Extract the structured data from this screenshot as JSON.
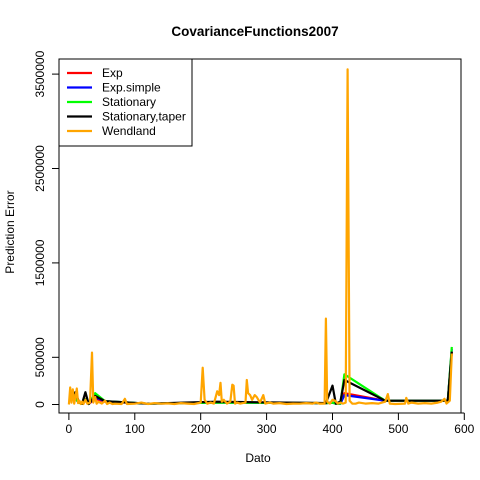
{
  "chart_data": {
    "type": "line",
    "title": "CovarianceFunctions2007",
    "xlabel": "Dato",
    "ylabel": "Prediction Error",
    "xlim": [
      -15,
      595
    ],
    "ylim": [
      -90000,
      3660000
    ],
    "x_ticks": [
      0,
      100,
      200,
      300,
      400,
      500,
      600
    ],
    "y_ticks": [
      0,
      500000,
      1500000,
      2500000,
      3500000
    ],
    "y_tick_labels": [
      "0",
      "500000",
      "1500000",
      "2500000",
      "3500000"
    ],
    "grid": false,
    "legend_position": "top-left",
    "series": [
      {
        "name": "Exp",
        "color": "#ff0000",
        "points": [
          [
            5,
            150000
          ],
          [
            10,
            60000
          ],
          [
            15,
            20000
          ],
          [
            20,
            8000
          ],
          [
            25,
            60000
          ],
          [
            30,
            5000
          ],
          [
            40,
            60000
          ],
          [
            55,
            30000
          ],
          [
            120,
            8000
          ],
          [
            175,
            15000
          ],
          [
            225,
            20000
          ],
          [
            390,
            15000
          ],
          [
            400,
            20000
          ],
          [
            405,
            8000
          ],
          [
            412,
            10000
          ],
          [
            418,
            120000
          ],
          [
            480,
            40000
          ],
          [
            575,
            40000
          ],
          [
            581,
            560000
          ]
        ]
      },
      {
        "name": "Exp.simple",
        "color": "#0000ff",
        "points": [
          [
            5,
            120000
          ],
          [
            10,
            60000
          ],
          [
            15,
            20000
          ],
          [
            20,
            8000
          ],
          [
            25,
            55000
          ],
          [
            30,
            5000
          ],
          [
            40,
            75000
          ],
          [
            55,
            35000
          ],
          [
            120,
            8000
          ],
          [
            175,
            15000
          ],
          [
            225,
            20000
          ],
          [
            390,
            15000
          ],
          [
            400,
            20000
          ],
          [
            405,
            8000
          ],
          [
            412,
            10000
          ],
          [
            418,
            100000
          ],
          [
            480,
            40000
          ],
          [
            575,
            40000
          ],
          [
            581,
            590000
          ]
        ]
      },
      {
        "name": "Stationary",
        "color": "#00ff00",
        "points": [
          [
            5,
            130000
          ],
          [
            10,
            60000
          ],
          [
            15,
            20000
          ],
          [
            20,
            8000
          ],
          [
            25,
            55000
          ],
          [
            30,
            5000
          ],
          [
            40,
            120000
          ],
          [
            55,
            35000
          ],
          [
            120,
            8000
          ],
          [
            175,
            15000
          ],
          [
            225,
            20000
          ],
          [
            390,
            15000
          ],
          [
            400,
            20000
          ],
          [
            405,
            8000
          ],
          [
            412,
            10000
          ],
          [
            418,
            320000
          ],
          [
            480,
            40000
          ],
          [
            575,
            40000
          ],
          [
            581,
            610000
          ]
        ]
      },
      {
        "name": "Stationary,taper",
        "color": "#000000",
        "points": [
          [
            5,
            110000
          ],
          [
            10,
            130000
          ],
          [
            15,
            30000
          ],
          [
            20,
            8000
          ],
          [
            25,
            130000
          ],
          [
            30,
            5000
          ],
          [
            40,
            90000
          ],
          [
            55,
            35000
          ],
          [
            120,
            8000
          ],
          [
            175,
            20000
          ],
          [
            225,
            30000
          ],
          [
            390,
            15000
          ],
          [
            400,
            200000
          ],
          [
            405,
            10000
          ],
          [
            412,
            30000
          ],
          [
            418,
            260000
          ],
          [
            480,
            40000
          ],
          [
            575,
            40000
          ],
          [
            581,
            560000
          ]
        ]
      },
      {
        "name": "Wendland",
        "color": "#ffa500",
        "points": [
          [
            0,
            0
          ],
          [
            2,
            180000
          ],
          [
            4,
            20000
          ],
          [
            6,
            160000
          ],
          [
            8,
            10000
          ],
          [
            10,
            80000
          ],
          [
            12,
            170000
          ],
          [
            14,
            15000
          ],
          [
            16,
            40000
          ],
          [
            18,
            5000
          ],
          [
            20,
            30000
          ],
          [
            22,
            5000
          ],
          [
            25,
            50000
          ],
          [
            28,
            8000
          ],
          [
            32,
            20000
          ],
          [
            35,
            550000
          ],
          [
            37,
            20000
          ],
          [
            40,
            80000
          ],
          [
            42,
            8000
          ],
          [
            45,
            30000
          ],
          [
            50,
            10000
          ],
          [
            55,
            40000
          ],
          [
            58,
            5000
          ],
          [
            62,
            20000
          ],
          [
            66,
            5000
          ],
          [
            70,
            8000
          ],
          [
            80,
            5000
          ],
          [
            85,
            60000
          ],
          [
            88,
            5000
          ],
          [
            100,
            8000
          ],
          [
            110,
            20000
          ],
          [
            120,
            5000
          ],
          [
            130,
            15000
          ],
          [
            140,
            8000
          ],
          [
            150,
            12000
          ],
          [
            160,
            5000
          ],
          [
            170,
            15000
          ],
          [
            180,
            10000
          ],
          [
            190,
            5000
          ],
          [
            200,
            20000
          ],
          [
            203,
            390000
          ],
          [
            206,
            50000
          ],
          [
            210,
            8000
          ],
          [
            215,
            20000
          ],
          [
            220,
            10000
          ],
          [
            225,
            140000
          ],
          [
            228,
            100000
          ],
          [
            230,
            230000
          ],
          [
            232,
            30000
          ],
          [
            235,
            50000
          ],
          [
            240,
            10000
          ],
          [
            245,
            30000
          ],
          [
            248,
            210000
          ],
          [
            250,
            200000
          ],
          [
            252,
            10000
          ],
          [
            255,
            20000
          ],
          [
            260,
            10000
          ],
          [
            268,
            20000
          ],
          [
            270,
            260000
          ],
          [
            272,
            120000
          ],
          [
            275,
            100000
          ],
          [
            278,
            50000
          ],
          [
            282,
            100000
          ],
          [
            285,
            80000
          ],
          [
            290,
            20000
          ],
          [
            295,
            100000
          ],
          [
            298,
            10000
          ],
          [
            305,
            20000
          ],
          [
            310,
            10000
          ],
          [
            320,
            15000
          ],
          [
            330,
            5000
          ],
          [
            340,
            10000
          ],
          [
            350,
            8000
          ],
          [
            360,
            15000
          ],
          [
            370,
            10000
          ],
          [
            375,
            20000
          ],
          [
            380,
            10000
          ],
          [
            388,
            10000
          ],
          [
            390,
            910000
          ],
          [
            392,
            30000
          ],
          [
            396,
            10000
          ],
          [
            400,
            50000
          ],
          [
            404,
            40000
          ],
          [
            408,
            10000
          ],
          [
            412,
            20000
          ],
          [
            416,
            10000
          ],
          [
            420,
            20000
          ],
          [
            423,
            3550000
          ],
          [
            426,
            40000
          ],
          [
            430,
            10000
          ],
          [
            435,
            8000
          ],
          [
            440,
            20000
          ],
          [
            450,
            10000
          ],
          [
            460,
            15000
          ],
          [
            470,
            10000
          ],
          [
            480,
            30000
          ],
          [
            484,
            110000
          ],
          [
            487,
            10000
          ],
          [
            495,
            5000
          ],
          [
            510,
            10000
          ],
          [
            512,
            70000
          ],
          [
            515,
            10000
          ],
          [
            520,
            20000
          ],
          [
            530,
            10000
          ],
          [
            540,
            15000
          ],
          [
            550,
            10000
          ],
          [
            560,
            20000
          ],
          [
            565,
            30000
          ],
          [
            570,
            60000
          ],
          [
            573,
            10000
          ],
          [
            578,
            40000
          ],
          [
            581,
            540000
          ]
        ]
      }
    ]
  }
}
